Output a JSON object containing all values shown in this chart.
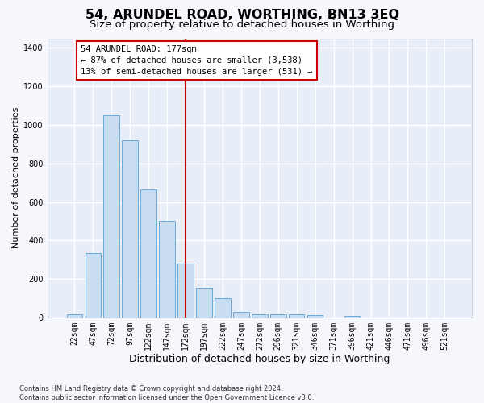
{
  "title": "54, ARUNDEL ROAD, WORTHING, BN13 3EQ",
  "subtitle": "Size of property relative to detached houses in Worthing",
  "xlabel": "Distribution of detached houses by size in Worthing",
  "ylabel": "Number of detached properties",
  "categories": [
    "22sqm",
    "47sqm",
    "72sqm",
    "97sqm",
    "122sqm",
    "147sqm",
    "172sqm",
    "197sqm",
    "222sqm",
    "247sqm",
    "272sqm",
    "296sqm",
    "321sqm",
    "346sqm",
    "371sqm",
    "396sqm",
    "421sqm",
    "446sqm",
    "471sqm",
    "496sqm",
    "521sqm"
  ],
  "values": [
    18,
    335,
    1050,
    920,
    665,
    500,
    280,
    155,
    100,
    30,
    18,
    18,
    15,
    10,
    0,
    8,
    0,
    0,
    0,
    0,
    0
  ],
  "bar_color": "#c8ddf0",
  "bar_edge_color": "#5a9fd4",
  "highlight_index": 6,
  "highlight_line_color": "#cc0000",
  "annotation_line1": "54 ARUNDEL ROAD: 177sqm",
  "annotation_line2": "← 87% of detached houses are smaller (3,538)",
  "annotation_line3": "13% of semi-detached houses are larger (531) →",
  "annotation_box_facecolor": "#ffffff",
  "annotation_box_edgecolor": "#cc0000",
  "ylim": [
    0,
    1450
  ],
  "yticks": [
    0,
    200,
    400,
    600,
    800,
    1000,
    1200,
    1400
  ],
  "plot_bg_color": "#e8eef8",
  "fig_bg_color": "#f5f7fc",
  "grid_color": "#ffffff",
  "footnote": "Contains HM Land Registry data © Crown copyright and database right 2024.\nContains public sector information licensed under the Open Government Licence v3.0.",
  "title_fontsize": 11.5,
  "subtitle_fontsize": 9.5,
  "xlabel_fontsize": 9,
  "ylabel_fontsize": 8,
  "tick_fontsize": 7,
  "annotation_fontsize": 7.5,
  "footnote_fontsize": 6
}
